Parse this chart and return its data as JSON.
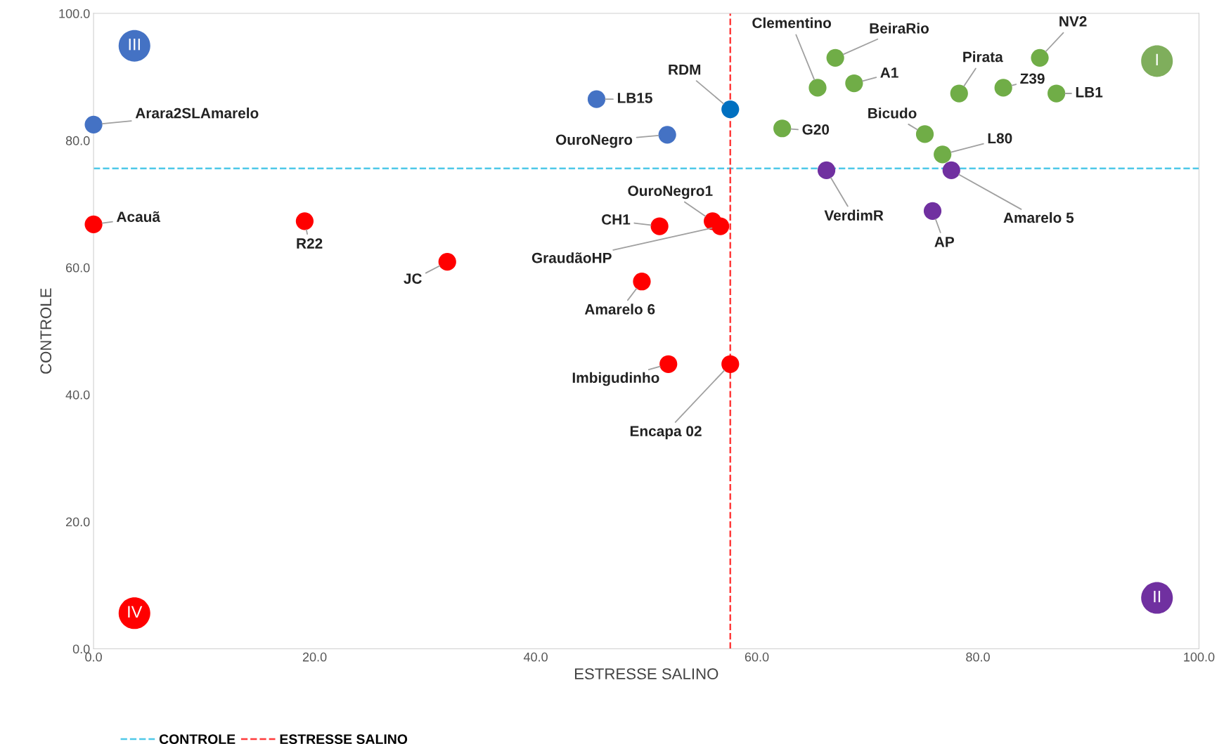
{
  "chart_data": {
    "type": "scatter",
    "xlabel": "ESTRESSE SALINO",
    "ylabel": "CONTROLE",
    "xlim": [
      0,
      100
    ],
    "ylim": [
      0,
      100
    ],
    "xticks": [
      {
        "value": 0,
        "label": "0.0"
      },
      {
        "value": 20,
        "label": "20.0"
      },
      {
        "value": 40,
        "label": "40.0"
      },
      {
        "value": 60,
        "label": "60.0"
      },
      {
        "value": 80,
        "label": "80.0"
      },
      {
        "value": 100,
        "label": "100.0"
      }
    ],
    "yticks": [
      {
        "value": 0,
        "label": "0.0"
      },
      {
        "value": 20,
        "label": "20.0"
      },
      {
        "value": 40,
        "label": "40.0"
      },
      {
        "value": 60,
        "label": "60.0"
      },
      {
        "value": 80,
        "label": "80.0"
      },
      {
        "value": 100,
        "label": "100.0"
      }
    ],
    "grid": false,
    "legend": "bottom left",
    "marker": "circle",
    "ref_lines": [
      {
        "axis": "y",
        "value": 75.6,
        "label": "CONTROLE",
        "color": "#4fc8e8",
        "line_style": "dashed"
      },
      {
        "axis": "x",
        "value": 57.6,
        "label": "ESTRESSE SALINO",
        "color": "#ff3b3b",
        "line_style": "dashed"
      }
    ],
    "series": [
      {
        "color": "#4472c4",
        "colors": [
          "#4472c4",
          "#4472c4",
          "#4472c4",
          "#0070c0"
        ],
        "x": [
          0,
          45.5,
          51.9,
          57.6
        ],
        "values": [
          82.5,
          86.5,
          80.9,
          84.9
        ],
        "value_labels": [
          "Arara2SLAmarelo",
          "LB15",
          "OuroNegro",
          "RDM"
        ]
      },
      {
        "color": "#70ad47",
        "x": [
          65.5,
          67.1,
          68.8,
          62.3,
          78.3,
          82.3,
          85.6,
          87.1,
          75.2,
          76.8
        ],
        "values": [
          88.3,
          93.0,
          89.0,
          81.9,
          87.4,
          88.3,
          93.0,
          87.4,
          81.0,
          77.8
        ],
        "value_labels": [
          "Clementino",
          "BeiraRio",
          "A1",
          "G20",
          "Pirata",
          "Z39",
          "NV2",
          "LB1",
          "Bicudo",
          "L80"
        ]
      },
      {
        "color": "#7030a0",
        "x": [
          66.3,
          77.6,
          75.9
        ],
        "values": [
          75.3,
          75.3,
          68.9
        ],
        "value_labels": [
          "VerdimR",
          "Amarelo 5",
          "AP"
        ]
      },
      {
        "color": "#ff0000",
        "x": [
          0,
          19.1,
          32.0,
          51.2,
          56.0,
          56.7,
          49.6,
          52.0,
          57.6
        ],
        "values": [
          66.8,
          67.3,
          60.9,
          66.5,
          67.3,
          66.5,
          57.8,
          44.8,
          44.8
        ],
        "value_labels": [
          "Acauã",
          "R22",
          "JC",
          "CH1",
          "OuroNegro1",
          "GraudãoHP",
          "Amarelo 6",
          "Imbigudinho",
          "Encapa 02"
        ]
      },
      {
        "type": "bubble",
        "colors": [
          "#7fae5c",
          "#7030a0",
          "#4472c4",
          "#ff0000"
        ],
        "x": [
          96.2,
          96.2,
          3.7,
          3.7
        ],
        "values": [
          92.5,
          8.0,
          94.9,
          5.6
        ],
        "sizes": [
          1,
          1,
          1,
          1
        ],
        "value_labels": [
          "I",
          "II",
          "III",
          "IV"
        ]
      }
    ]
  }
}
